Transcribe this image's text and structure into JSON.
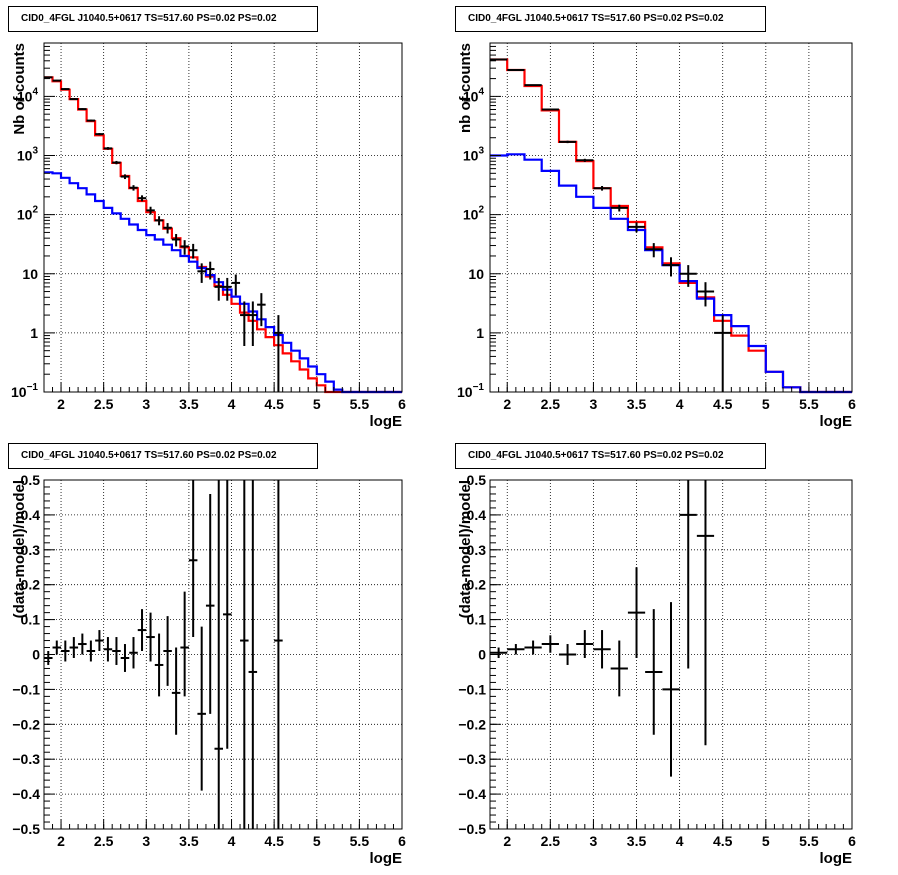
{
  "chart_data": [
    {
      "type": "line",
      "title": "CID0_4FGL J1040.5+0617 TS=517.60 PS=0.02 PS=0.02",
      "xlabel": "logE",
      "ylabel": "Nb of counts",
      "xlim": [
        1.8,
        6
      ],
      "ylim": [
        0.1,
        80000
      ],
      "yscale": "log",
      "grid": true,
      "x_ticks": [
        "2",
        "2.5",
        "3",
        "3.5",
        "4",
        "4.5",
        "5",
        "5.5",
        "6"
      ],
      "y_ticks": [
        {
          "value": 0.1,
          "base": "10",
          "exp": "−1"
        },
        {
          "value": 1,
          "label": "1"
        },
        {
          "value": 10,
          "label": "10"
        },
        {
          "value": 100,
          "base": "10",
          "exp": "2"
        },
        {
          "value": 1000,
          "base": "10",
          "exp": "3"
        },
        {
          "value": 10000,
          "base": "10",
          "exp": "4"
        }
      ],
      "bin_edges": [
        1.8,
        1.9,
        2.0,
        2.1,
        2.2,
        2.3,
        2.4,
        2.5,
        2.6,
        2.7,
        2.8,
        2.9,
        3.0,
        3.1,
        3.2,
        3.3,
        3.4,
        3.5,
        3.6,
        3.7,
        3.8,
        3.9,
        4.0,
        4.1,
        4.2,
        4.3,
        4.4,
        4.5,
        4.6,
        4.7,
        4.8,
        4.9,
        5.0,
        5.1,
        5.2,
        5.3,
        5.4,
        5.5,
        5.6,
        5.7,
        5.8,
        5.9,
        6.0
      ],
      "series": [
        {
          "name": "",
          "color": "#ff0000",
          "style": "step",
          "values": [
            21000,
            18000,
            13000,
            9000,
            6000,
            3800,
            2200,
            1300,
            750,
            450,
            280,
            170,
            110,
            80,
            58,
            40,
            28,
            19,
            13,
            9,
            6.2,
            4.4,
            3.1,
            2.2,
            1.6,
            1.15,
            0.85,
            0.62,
            0.45,
            0.33,
            0.24,
            0.17,
            0.13,
            0.1,
            0.1,
            0.1,
            0.1,
            0.1,
            0.1,
            0.1,
            0.1,
            0.1
          ]
        },
        {
          "name": "",
          "color": "#0000ff",
          "style": "step",
          "values": [
            520,
            500,
            420,
            340,
            280,
            220,
            170,
            130,
            105,
            85,
            68,
            55,
            45,
            38,
            31,
            25,
            20,
            16,
            12.5,
            9.5,
            7.2,
            5.4,
            4.1,
            3.1,
            2.3,
            1.7,
            1.25,
            0.92,
            0.68,
            0.5,
            0.37,
            0.27,
            0.2,
            0.15,
            0.11,
            0.1,
            0.1,
            0.1,
            0.1,
            0.1,
            0.1,
            0.1
          ]
        },
        {
          "name": "",
          "color": "#000000",
          "style": "points",
          "points": [
            {
              "x": 1.85,
              "y": 21000,
              "lo": 20500,
              "hi": 21500
            },
            {
              "x": 1.95,
              "y": 18500,
              "lo": 18000,
              "hi": 19000
            },
            {
              "x": 2.05,
              "y": 13300,
              "lo": 12900,
              "hi": 13700
            },
            {
              "x": 2.15,
              "y": 9000,
              "lo": 8700,
              "hi": 9300
            },
            {
              "x": 2.25,
              "y": 6100,
              "lo": 5900,
              "hi": 6300
            },
            {
              "x": 2.35,
              "y": 3900,
              "lo": 3750,
              "hi": 4050
            },
            {
              "x": 2.45,
              "y": 2300,
              "lo": 2200,
              "hi": 2400
            },
            {
              "x": 2.55,
              "y": 1320,
              "lo": 1250,
              "hi": 1390
            },
            {
              "x": 2.65,
              "y": 760,
              "lo": 710,
              "hi": 810
            },
            {
              "x": 2.75,
              "y": 440,
              "lo": 400,
              "hi": 480
            },
            {
              "x": 2.85,
              "y": 285,
              "lo": 255,
              "hi": 315
            },
            {
              "x": 2.95,
              "y": 190,
              "lo": 168,
              "hi": 212
            },
            {
              "x": 3.05,
              "y": 118,
              "lo": 100,
              "hi": 136
            },
            {
              "x": 3.15,
              "y": 80,
              "lo": 66,
              "hi": 94
            },
            {
              "x": 3.25,
              "y": 60,
              "lo": 48,
              "hi": 72
            },
            {
              "x": 3.35,
              "y": 38,
              "lo": 29,
              "hi": 47
            },
            {
              "x": 3.45,
              "y": 29,
              "lo": 21,
              "hi": 37
            },
            {
              "x": 3.55,
              "y": 25,
              "lo": 18,
              "hi": 32
            },
            {
              "x": 3.65,
              "y": 11,
              "lo": 7,
              "hi": 15
            },
            {
              "x": 3.75,
              "y": 12,
              "lo": 8,
              "hi": 16
            },
            {
              "x": 3.85,
              "y": 6,
              "lo": 3.5,
              "hi": 8.5
            },
            {
              "x": 3.95,
              "y": 6,
              "lo": 3.5,
              "hi": 8.5
            },
            {
              "x": 4.05,
              "y": 7,
              "lo": 4.3,
              "hi": 9.7
            },
            {
              "x": 4.15,
              "y": 2,
              "lo": 0.6,
              "hi": 3.4
            },
            {
              "x": 4.25,
              "y": 2,
              "lo": 0.6,
              "hi": 3.4
            },
            {
              "x": 4.35,
              "y": 3,
              "lo": 1.3,
              "hi": 4.7
            },
            {
              "x": 4.55,
              "y": 1,
              "lo": 0.1,
              "hi": 2
            }
          ]
        }
      ]
    },
    {
      "type": "line",
      "title": "CID0_4FGL J1040.5+0617 TS=517.60 PS=0.02 PS=0.02",
      "xlabel": "logE",
      "ylabel": "nb of counts",
      "xlim": [
        1.8,
        6
      ],
      "ylim": [
        0.1,
        80000
      ],
      "yscale": "log",
      "grid": true,
      "x_ticks": [
        "2",
        "2.5",
        "3",
        "3.5",
        "4",
        "4.5",
        "5",
        "5.5",
        "6"
      ],
      "y_ticks": [
        {
          "value": 0.1,
          "base": "10",
          "exp": "−1"
        },
        {
          "value": 1,
          "label": "1"
        },
        {
          "value": 10,
          "label": "10"
        },
        {
          "value": 100,
          "base": "10",
          "exp": "2"
        },
        {
          "value": 1000,
          "base": "10",
          "exp": "3"
        },
        {
          "value": 10000,
          "base": "10",
          "exp": "4"
        }
      ],
      "bin_edges": [
        1.8,
        2.0,
        2.2,
        2.4,
        2.6,
        2.8,
        3.0,
        3.2,
        3.4,
        3.6,
        3.8,
        4.0,
        4.2,
        4.4,
        4.6,
        4.8,
        5.0,
        5.2,
        5.4,
        5.6,
        5.8,
        6.0
      ],
      "series": [
        {
          "name": "",
          "color": "#ff0000",
          "style": "step",
          "values": [
            42000,
            28000,
            15000,
            5800,
            1700,
            800,
            280,
            140,
            75,
            28,
            15,
            7,
            4,
            1.6,
            0.9,
            0.5,
            0.22,
            0.12,
            0.1,
            0.1,
            0.1
          ]
        },
        {
          "name": "",
          "color": "#0000ff",
          "style": "step",
          "values": [
            1000,
            1050,
            850,
            550,
            310,
            200,
            130,
            85,
            55,
            25,
            14,
            7.5,
            3.8,
            2.0,
            1.3,
            0.6,
            0.22,
            0.12,
            0.1,
            0.1,
            0.1
          ]
        },
        {
          "name": "",
          "color": "#000000",
          "style": "points",
          "points": [
            {
              "x": 1.9,
              "y": 42000,
              "lo": 41500,
              "hi": 42500
            },
            {
              "x": 2.1,
              "y": 28000,
              "lo": 27600,
              "hi": 28400
            },
            {
              "x": 2.3,
              "y": 15500,
              "lo": 15200,
              "hi": 15800
            },
            {
              "x": 2.5,
              "y": 6000,
              "lo": 5850,
              "hi": 6150
            },
            {
              "x": 2.7,
              "y": 1700,
              "lo": 1620,
              "hi": 1780
            },
            {
              "x": 2.9,
              "y": 830,
              "lo": 780,
              "hi": 880
            },
            {
              "x": 3.1,
              "y": 280,
              "lo": 255,
              "hi": 305
            },
            {
              "x": 3.3,
              "y": 130,
              "lo": 113,
              "hi": 147
            },
            {
              "x": 3.5,
              "y": 62,
              "lo": 50,
              "hi": 74
            },
            {
              "x": 3.7,
              "y": 26,
              "lo": 19,
              "hi": 33
            },
            {
              "x": 3.9,
              "y": 14,
              "lo": 9,
              "hi": 19
            },
            {
              "x": 4.1,
              "y": 10,
              "lo": 6,
              "hi": 14
            },
            {
              "x": 4.3,
              "y": 5,
              "lo": 2.8,
              "hi": 7.2
            },
            {
              "x": 4.5,
              "y": 1,
              "lo": 0.1,
              "hi": 2
            }
          ]
        }
      ]
    },
    {
      "type": "scatter",
      "title": "CID0_4FGL J1040.5+0617 TS=517.60 PS=0.02 PS=0.02",
      "xlabel": "logE",
      "ylabel": "(data-model)/model",
      "xlim": [
        1.8,
        6
      ],
      "ylim": [
        -0.5,
        0.5
      ],
      "grid": true,
      "x_ticks": [
        "2",
        "2.5",
        "3",
        "3.5",
        "4",
        "4.5",
        "5",
        "5.5",
        "6"
      ],
      "y_ticks": [
        "−0.5",
        "−0.4",
        "−0.3",
        "−0.2",
        "−0.1",
        "0",
        "0.1",
        "0.2",
        "0.3",
        "0.4",
        "0.5"
      ],
      "series": [
        {
          "name": "",
          "color": "#000000",
          "style": "points",
          "points": [
            {
              "x": 1.85,
              "y": -0.01,
              "lo": -0.03,
              "hi": 0.01
            },
            {
              "x": 1.95,
              "y": 0.02,
              "lo": 0.0,
              "hi": 0.04
            },
            {
              "x": 2.05,
              "y": 0.01,
              "lo": -0.02,
              "hi": 0.04
            },
            {
              "x": 2.15,
              "y": 0.02,
              "lo": -0.01,
              "hi": 0.05
            },
            {
              "x": 2.25,
              "y": 0.03,
              "lo": 0.0,
              "hi": 0.06
            },
            {
              "x": 2.35,
              "y": 0.01,
              "lo": -0.02,
              "hi": 0.04
            },
            {
              "x": 2.45,
              "y": 0.04,
              "lo": 0.01,
              "hi": 0.07
            },
            {
              "x": 2.55,
              "y": 0.015,
              "lo": -0.02,
              "hi": 0.05
            },
            {
              "x": 2.65,
              "y": 0.01,
              "lo": -0.03,
              "hi": 0.05
            },
            {
              "x": 2.75,
              "y": -0.01,
              "lo": -0.05,
              "hi": 0.03
            },
            {
              "x": 2.85,
              "y": 0.005,
              "lo": -0.04,
              "hi": 0.05
            },
            {
              "x": 2.95,
              "y": 0.07,
              "lo": 0.01,
              "hi": 0.13
            },
            {
              "x": 3.05,
              "y": 0.05,
              "lo": -0.02,
              "hi": 0.12
            },
            {
              "x": 3.15,
              "y": -0.03,
              "lo": -0.12,
              "hi": 0.06
            },
            {
              "x": 3.25,
              "y": 0.01,
              "lo": -0.09,
              "hi": 0.11
            },
            {
              "x": 3.35,
              "y": -0.11,
              "lo": -0.23,
              "hi": 0.02
            },
            {
              "x": 3.45,
              "y": 0.02,
              "lo": -0.12,
              "hi": 0.18
            },
            {
              "x": 3.55,
              "y": 0.27,
              "lo": 0.05,
              "hi": 0.5
            },
            {
              "x": 3.65,
              "y": -0.17,
              "lo": -0.39,
              "hi": 0.08
            },
            {
              "x": 3.75,
              "y": 0.14,
              "lo": -0.17,
              "hi": 0.46
            },
            {
              "x": 3.85,
              "y": -0.27,
              "lo": -0.5,
              "hi": 0.5
            },
            {
              "x": 3.95,
              "y": 0.115,
              "lo": -0.27,
              "hi": 0.5
            },
            {
              "x": 4.15,
              "y": 0.04,
              "lo": -0.5,
              "hi": 0.5
            },
            {
              "x": 4.25,
              "y": -0.05,
              "lo": -0.5,
              "hi": 0.5
            },
            {
              "x": 4.55,
              "y": 0.04,
              "lo": -0.5,
              "hi": 0.5
            }
          ]
        }
      ]
    },
    {
      "type": "scatter",
      "title": "CID0_4FGL J1040.5+0617 TS=517.60 PS=0.02 PS=0.02",
      "xlabel": "logE",
      "ylabel": "(data-model)/model",
      "xlim": [
        1.8,
        6
      ],
      "ylim": [
        -0.5,
        0.5
      ],
      "grid": true,
      "x_ticks": [
        "2",
        "2.5",
        "3",
        "3.5",
        "4",
        "4.5",
        "5",
        "5.5",
        "6"
      ],
      "y_ticks": [
        "−0.5",
        "−0.4",
        "−0.3",
        "−0.2",
        "−0.1",
        "0",
        "0.1",
        "0.2",
        "0.3",
        "0.4",
        "0.5"
      ],
      "series": [
        {
          "name": "",
          "color": "#000000",
          "style": "points",
          "points": [
            {
              "x": 1.9,
              "y": 0.005,
              "lo": -0.01,
              "hi": 0.02
            },
            {
              "x": 2.1,
              "y": 0.015,
              "lo": 0.0,
              "hi": 0.03
            },
            {
              "x": 2.3,
              "y": 0.02,
              "lo": 0.0,
              "hi": 0.04
            },
            {
              "x": 2.5,
              "y": 0.03,
              "lo": 0.005,
              "hi": 0.055
            },
            {
              "x": 2.7,
              "y": 0.0,
              "lo": -0.03,
              "hi": 0.03
            },
            {
              "x": 2.9,
              "y": 0.03,
              "lo": -0.01,
              "hi": 0.07
            },
            {
              "x": 3.1,
              "y": 0.015,
              "lo": -0.04,
              "hi": 0.07
            },
            {
              "x": 3.3,
              "y": -0.04,
              "lo": -0.12,
              "hi": 0.04
            },
            {
              "x": 3.5,
              "y": 0.12,
              "lo": -0.01,
              "hi": 0.25
            },
            {
              "x": 3.7,
              "y": -0.05,
              "lo": -0.23,
              "hi": 0.13
            },
            {
              "x": 3.9,
              "y": -0.1,
              "lo": -0.35,
              "hi": 0.15
            },
            {
              "x": 4.1,
              "y": 0.4,
              "lo": -0.04,
              "hi": 0.5
            },
            {
              "x": 4.3,
              "y": 0.34,
              "lo": -0.26,
              "hi": 0.5
            }
          ]
        }
      ]
    }
  ]
}
